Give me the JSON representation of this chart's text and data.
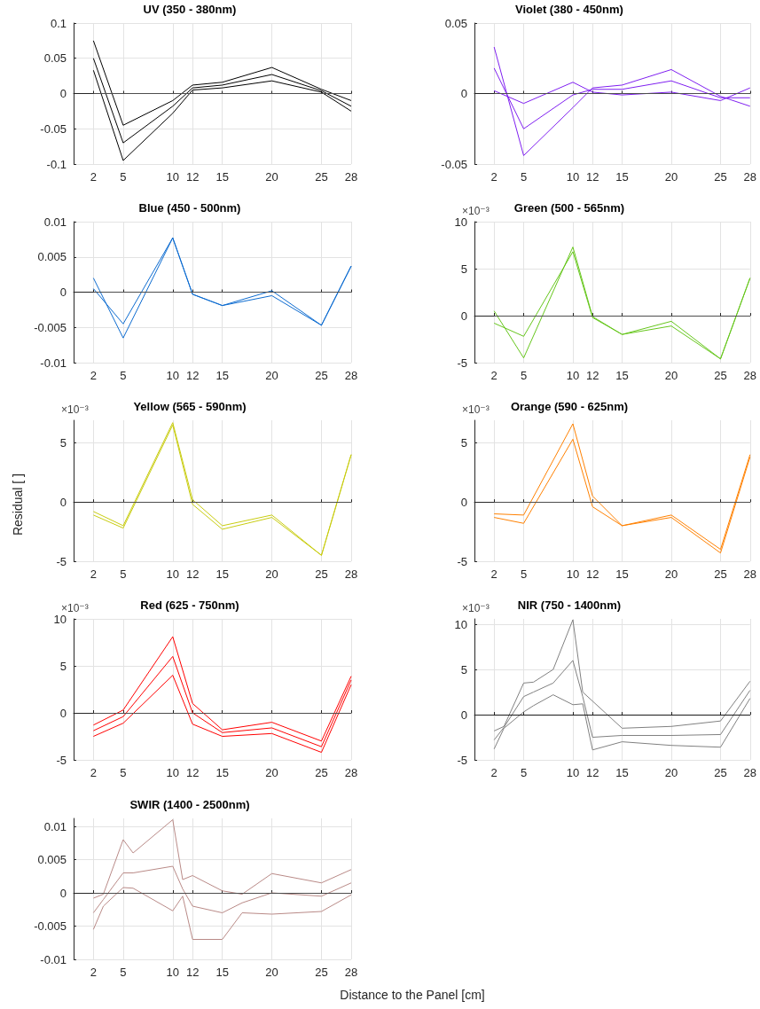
{
  "chart_data": [
    {
      "type": "line",
      "title": "UV (350 - 380nm)",
      "x": [
        2,
        5,
        10,
        12,
        15,
        20,
        25,
        28
      ],
      "xlim": [
        0,
        28
      ],
      "xticks": [
        2,
        5,
        10,
        12,
        15,
        20,
        25,
        28
      ],
      "ylim": [
        -0.1,
        0.1
      ],
      "yticks": [
        -0.1,
        -0.05,
        0,
        0.05,
        0.1
      ],
      "grid": true,
      "ref_lines": [
        {
          "axis": "y",
          "value": 0,
          "color": "#4d4d4d"
        }
      ],
      "series": [
        {
          "color": "#000000",
          "values": [
            0.075,
            -0.045,
            -0.01,
            0.012,
            0.016,
            0.037,
            0.006,
            -0.01
          ]
        },
        {
          "color": "#000000",
          "values": [
            0.05,
            -0.07,
            -0.018,
            0.008,
            0.012,
            0.027,
            0.004,
            -0.018
          ]
        },
        {
          "color": "#000000",
          "values": [
            0.033,
            -0.095,
            -0.028,
            0.005,
            0.008,
            0.018,
            0.002,
            -0.025
          ]
        }
      ]
    },
    {
      "type": "line",
      "title": "Violet (380 - 450nm)",
      "x": [
        2,
        5,
        10,
        12,
        15,
        20,
        25,
        28
      ],
      "xlim": [
        0,
        28
      ],
      "xticks": [
        2,
        5,
        10,
        12,
        15,
        20,
        25,
        28
      ],
      "ylim": [
        -0.05,
        0.05
      ],
      "yticks": [
        -0.05,
        0,
        0.05
      ],
      "grid": true,
      "ref_lines": [
        {
          "axis": "y",
          "value": 0,
          "color": "#4d4d4d"
        }
      ],
      "series": [
        {
          "color": "#7f1ff0",
          "values": [
            0.033,
            -0.044,
            -0.01,
            0.004,
            0.006,
            0.017,
            -0.002,
            -0.009
          ]
        },
        {
          "color": "#7f1ff0",
          "values": [
            0.018,
            -0.025,
            -0.001,
            0.003,
            0.003,
            0.009,
            -0.003,
            -0.003
          ]
        },
        {
          "color": "#7f1ff0",
          "values": [
            0.002,
            -0.007,
            0.008,
            0.001,
            -0.001,
            0.001,
            -0.005,
            0.004
          ]
        }
      ]
    },
    {
      "type": "line",
      "title": "Blue (450 - 500nm)",
      "x": [
        2,
        5,
        10,
        12,
        15,
        20,
        25,
        28
      ],
      "xlim": [
        0,
        28
      ],
      "xticks": [
        2,
        5,
        10,
        12,
        15,
        20,
        25,
        28
      ],
      "ylim": [
        -0.01,
        0.01
      ],
      "yticks": [
        -0.01,
        -0.005,
        0,
        0.005,
        0.01
      ],
      "grid": true,
      "ref_lines": [
        {
          "axis": "y",
          "value": 0,
          "color": "#4d4d4d"
        }
      ],
      "series": [
        {
          "color": "#0c6bd0",
          "values": [
            0.002,
            -0.0065,
            0.0077,
            -0.0003,
            -0.0019,
            0.0002,
            -0.0047,
            0.0037
          ]
        },
        {
          "color": "#0c6bd0",
          "values": [
            0.0005,
            -0.0045,
            0.0077,
            -0.0003,
            -0.0019,
            -0.0005,
            -0.0047,
            0.0037
          ]
        }
      ]
    },
    {
      "type": "line",
      "title": "Green (500 - 565nm)",
      "annotations": [
        "×10⁻³"
      ],
      "x": [
        2,
        5,
        10,
        12,
        15,
        20,
        25,
        28
      ],
      "xlim": [
        0,
        28
      ],
      "xticks": [
        2,
        5,
        10,
        12,
        15,
        20,
        25,
        28
      ],
      "ylim": [
        -5,
        10
      ],
      "yticks": [
        -5,
        0,
        5,
        10
      ],
      "grid": true,
      "ref_lines": [
        {
          "axis": "y",
          "value": 0,
          "color": "#4d4d4d"
        }
      ],
      "series": [
        {
          "color": "#66c61c",
          "values": [
            0.5,
            -4.5,
            7.3,
            -0.1,
            -2,
            -0.6,
            -4.6,
            4
          ]
        },
        {
          "color": "#66c61c",
          "values": [
            -0.8,
            -2.2,
            6.8,
            -0.2,
            -2,
            -1.1,
            -4.6,
            4
          ]
        }
      ]
    },
    {
      "type": "line",
      "title": "Yellow (565 - 590nm)",
      "ylabel": "Residual [ ]",
      "annotations": [
        "×10⁻³"
      ],
      "x": [
        2,
        5,
        10,
        12,
        15,
        20,
        25,
        28
      ],
      "xlim": [
        0,
        28
      ],
      "xticks": [
        2,
        5,
        10,
        12,
        15,
        20,
        25,
        28
      ],
      "ylim": [
        -5,
        6.9
      ],
      "yticks": [
        -5,
        0,
        5
      ],
      "grid": true,
      "ref_lines": [
        {
          "axis": "y",
          "value": 0,
          "color": "#4d4d4d"
        }
      ],
      "series": [
        {
          "color": "#c8cc10",
          "values": [
            -0.8,
            -2,
            6.7,
            0.2,
            -2,
            -1.1,
            -4.5,
            4
          ]
        },
        {
          "color": "#c8cc10",
          "values": [
            -1.1,
            -2.2,
            6.5,
            -0.2,
            -2.3,
            -1.3,
            -4.5,
            4
          ]
        }
      ]
    },
    {
      "type": "line",
      "title": "Orange (590 - 625nm)",
      "annotations": [
        "×10⁻³"
      ],
      "x": [
        2,
        5,
        10,
        12,
        15,
        20,
        25,
        28
      ],
      "xlim": [
        0,
        28
      ],
      "xticks": [
        2,
        5,
        10,
        12,
        15,
        20,
        25,
        28
      ],
      "ylim": [
        -5,
        6.9
      ],
      "yticks": [
        -5,
        0,
        5
      ],
      "grid": true,
      "ref_lines": [
        {
          "axis": "y",
          "value": 0,
          "color": "#4d4d4d"
        }
      ],
      "series": [
        {
          "color": "#ff8000",
          "values": [
            -1,
            -1.1,
            6.6,
            0.5,
            -2,
            -1.1,
            -4,
            4
          ]
        },
        {
          "color": "#ff8000",
          "values": [
            -1.3,
            -1.8,
            5.3,
            -0.4,
            -2,
            -1.3,
            -4.3,
            3.8
          ]
        }
      ]
    },
    {
      "type": "line",
      "title": "Red (625 - 750nm)",
      "annotations": [
        "×10⁻³"
      ],
      "x": [
        2,
        5,
        10,
        12,
        15,
        20,
        25,
        28
      ],
      "xlim": [
        0,
        28
      ],
      "xticks": [
        2,
        5,
        10,
        12,
        15,
        20,
        25,
        28
      ],
      "ylim": [
        -5,
        10
      ],
      "yticks": [
        -5,
        0,
        5,
        10
      ],
      "grid": true,
      "ref_lines": [
        {
          "axis": "y",
          "value": 0,
          "color": "#4d4d4d"
        }
      ],
      "series": [
        {
          "color": "#ff0000",
          "values": [
            -1.3,
            0.3,
            8.1,
            1,
            -1.8,
            -1,
            -3,
            3.9
          ]
        },
        {
          "color": "#ff0000",
          "values": [
            -1.9,
            -0.4,
            6,
            0,
            -2.1,
            -1.6,
            -3.6,
            3.5
          ]
        },
        {
          "color": "#ff0000",
          "values": [
            -2.5,
            -1.1,
            4,
            -1.2,
            -2.5,
            -2.2,
            -4.2,
            3
          ]
        }
      ]
    },
    {
      "type": "line",
      "title": "NIR (750 - 1400nm)",
      "annotations": [
        "×10⁻³"
      ],
      "x": [
        2,
        3,
        5,
        6,
        8,
        10,
        11,
        12,
        15,
        20,
        25,
        28
      ],
      "xlim": [
        0,
        28
      ],
      "xticks": [
        2,
        5,
        10,
        12,
        15,
        20,
        25,
        28
      ],
      "ylim": [
        -5,
        10.6
      ],
      "yticks": [
        -5,
        0,
        5,
        10
      ],
      "grid": true,
      "ref_lines": [
        {
          "axis": "y",
          "value": 0,
          "color": "#1a1a1a"
        }
      ],
      "series": [
        {
          "color": "#808080",
          "values": [
            -1.8,
            -1.3,
            3.5,
            3.6,
            5,
            10.5,
            2.5,
            1.5,
            -1.5,
            -1.3,
            -0.7,
            3.7
          ]
        },
        {
          "color": "#808080",
          "values": [
            -2.8,
            -1.4,
            2,
            2.5,
            3.5,
            6,
            2,
            -2.5,
            -2.3,
            -2.3,
            -2.2,
            2.7
          ]
        },
        {
          "color": "#808080",
          "values": [
            -3.8,
            -1.5,
            0.3,
            1,
            2.2,
            1.1,
            1.2,
            -3.9,
            -3,
            -3.4,
            -3.6,
            1.8
          ]
        }
      ]
    },
    {
      "type": "line",
      "title": "SWIR (1400 - 2500nm)",
      "xlabel": "Distance to the Panel [cm]",
      "x": [
        2,
        3,
        5,
        6,
        10,
        11,
        12,
        15,
        17,
        20,
        25,
        28
      ],
      "xlim": [
        0,
        28
      ],
      "xticks": [
        2,
        5,
        10,
        12,
        15,
        20,
        25,
        28
      ],
      "ylim": [
        -0.01,
        0.0112
      ],
      "yticks": [
        -0.01,
        -0.005,
        0,
        0.005,
        0.01
      ],
      "grid": true,
      "ref_lines": [
        {
          "axis": "y",
          "value": 0,
          "color": "#4d4d4d"
        }
      ],
      "series": [
        {
          "color": "#b98a87",
          "values": [
            -0.0008,
            -0.0002,
            0.008,
            0.006,
            0.011,
            0.002,
            0.0026,
            0.0003,
            -0.0002,
            0.0029,
            0.0015,
            0.0035
          ]
        },
        {
          "color": "#b98a87",
          "values": [
            -0.003,
            -0.001,
            0.003,
            0.003,
            0.004,
            0.0006,
            -0.002,
            -0.003,
            -0.0015,
            0,
            -0.0005,
            0.0015
          ]
        },
        {
          "color": "#b98a87",
          "values": [
            -0.0055,
            -0.002,
            0.0008,
            0.0007,
            -0.0027,
            -0.0005,
            -0.007,
            -0.007,
            -0.003,
            -0.0032,
            -0.0028,
            -0.0003
          ]
        }
      ]
    }
  ]
}
